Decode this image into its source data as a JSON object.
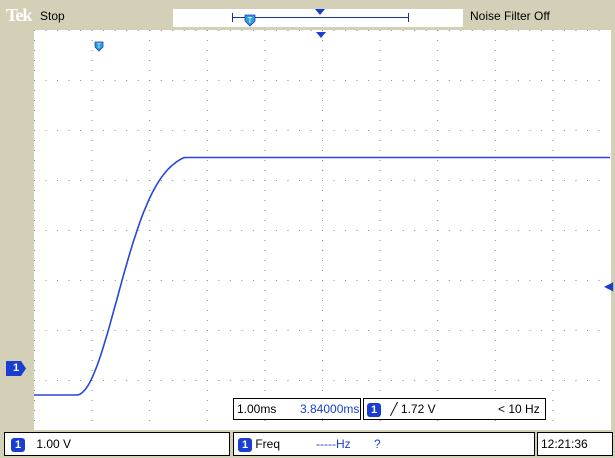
{
  "header": {
    "brand": "Tek",
    "run_state": "Stop",
    "noise_filter": "Noise Filter Off"
  },
  "channel": {
    "number": "1",
    "scale": "1.00 V"
  },
  "timebase": {
    "scale": "1.00ms",
    "position": "3.84000ms"
  },
  "trigger": {
    "source": "1",
    "slope_symbol": "╱",
    "level": "1.72 V",
    "freq": "< 10 Hz",
    "position_marker": "T",
    "level_marker": "◀"
  },
  "measure": {
    "source": "1",
    "label": "Freq",
    "value": "-----Hz",
    "status": "?"
  },
  "clock": "12:21:36",
  "colors": {
    "trace": "#2a46d8",
    "bezel": "#d4d0b8",
    "badge": "#1a3fd0"
  },
  "waveform": {
    "baseline_level_div": -3.3,
    "high_level_div": 1.45,
    "rise_start_ms": -4.1,
    "rise_end_ms": -2.9,
    "x_range_ms": [
      -4.84,
      5.16
    ]
  }
}
